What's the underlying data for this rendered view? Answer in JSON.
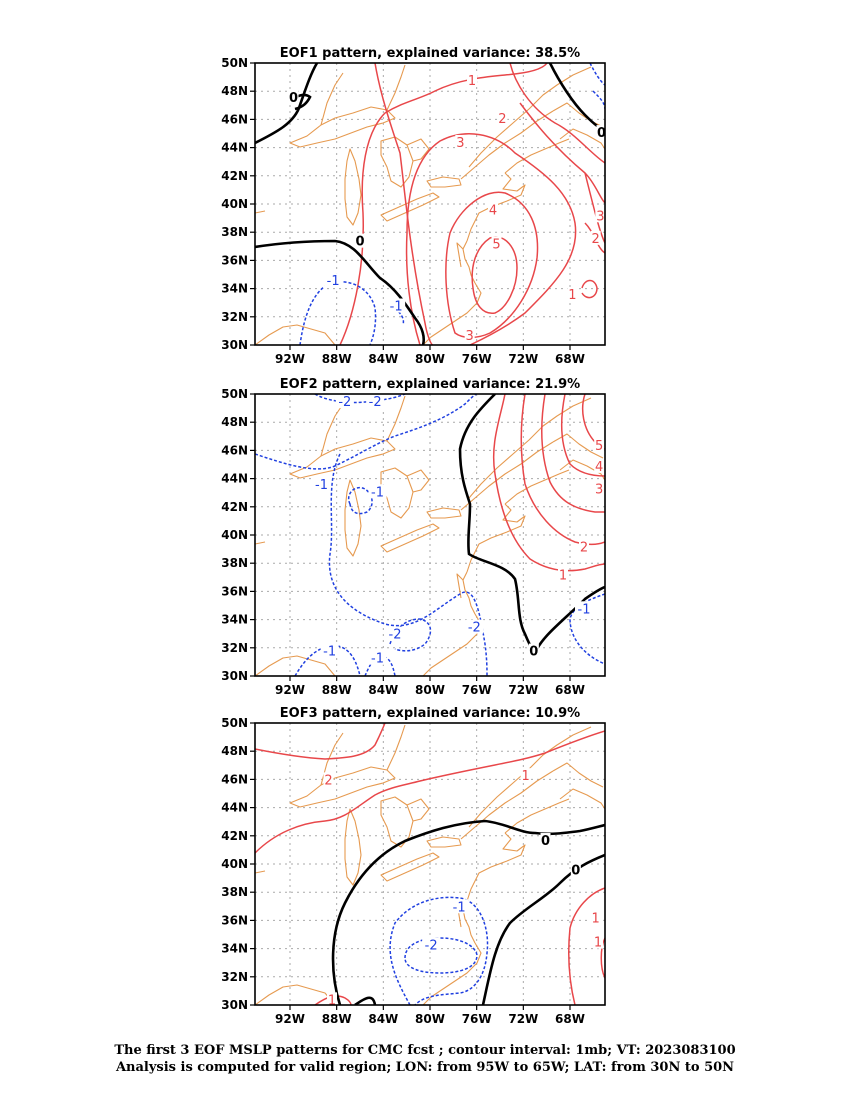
{
  "colors": {
    "positive": "#e8474a",
    "negative": "#2040e0",
    "zero": "#000000",
    "coast": "#e69a50",
    "grid": "#aaaaaa"
  },
  "lat_labels": [
    "30N",
    "32N",
    "34N",
    "36N",
    "38N",
    "40N",
    "42N",
    "44N",
    "46N",
    "48N",
    "50N"
  ],
  "lon_labels": [
    "92W",
    "88W",
    "84W",
    "80W",
    "76W",
    "72W",
    "68W"
  ],
  "panels": [
    {
      "title": "EOF1 pattern, explained variance: 38.5%",
      "labels": [
        {
          "t": "1",
          "c": "positive",
          "lon": -76.4,
          "lat": 48.8
        },
        {
          "t": "2",
          "c": "positive",
          "lon": -73.8,
          "lat": 46.1
        },
        {
          "t": "3",
          "c": "positive",
          "lon": -77.4,
          "lat": 44.4
        },
        {
          "t": "4",
          "c": "positive",
          "lon": -74.6,
          "lat": 39.6
        },
        {
          "t": "5",
          "c": "positive",
          "lon": -74.3,
          "lat": 37.2
        },
        {
          "t": "3",
          "c": "positive",
          "lon": -65.4,
          "lat": 39.2
        },
        {
          "t": "2",
          "c": "positive",
          "lon": -65.8,
          "lat": 37.6
        },
        {
          "t": "1",
          "c": "positive",
          "lon": -67.8,
          "lat": 33.6
        },
        {
          "t": "3",
          "c": "positive",
          "lon": -76.6,
          "lat": 30.7
        },
        {
          "t": "0",
          "c": "zero",
          "lon": -91.7,
          "lat": 47.6
        },
        {
          "t": "0",
          "c": "zero",
          "lon": -86.0,
          "lat": 37.4
        },
        {
          "t": "0",
          "c": "zero",
          "lon": -65.3,
          "lat": 45.1
        },
        {
          "t": "-1",
          "c": "negative",
          "lon": -88.3,
          "lat": 34.6
        },
        {
          "t": "-1",
          "c": "negative",
          "lon": -82.9,
          "lat": 32.8
        }
      ]
    },
    {
      "title": "EOF2 pattern, explained variance: 21.9%",
      "labels": [
        {
          "t": "-2",
          "c": "negative",
          "lon": -87.3,
          "lat": 49.5
        },
        {
          "t": "-2",
          "c": "negative",
          "lon": -84.7,
          "lat": 49.5
        },
        {
          "t": "-1",
          "c": "negative",
          "lon": -89.3,
          "lat": 43.6
        },
        {
          "t": "-1",
          "c": "negative",
          "lon": -84.5,
          "lat": 43.1
        },
        {
          "t": "-2",
          "c": "negative",
          "lon": -83.0,
          "lat": 33.0
        },
        {
          "t": "-2",
          "c": "negative",
          "lon": -76.2,
          "lat": 33.5
        },
        {
          "t": "-1",
          "c": "negative",
          "lon": -88.6,
          "lat": 31.8
        },
        {
          "t": "-1",
          "c": "negative",
          "lon": -84.5,
          "lat": 31.3
        },
        {
          "t": "-1",
          "c": "negative",
          "lon": -66.8,
          "lat": 34.8
        },
        {
          "t": "0",
          "c": "zero",
          "lon": -71.1,
          "lat": 31.8
        },
        {
          "t": "5",
          "c": "positive",
          "lon": -65.5,
          "lat": 46.4
        },
        {
          "t": "4",
          "c": "positive",
          "lon": -65.5,
          "lat": 44.9
        },
        {
          "t": "3",
          "c": "positive",
          "lon": -65.5,
          "lat": 43.3
        },
        {
          "t": "2",
          "c": "positive",
          "lon": -66.8,
          "lat": 39.2
        },
        {
          "t": "1",
          "c": "positive",
          "lon": -68.6,
          "lat": 37.2
        }
      ]
    },
    {
      "title": "EOF3 pattern, explained variance: 10.9%",
      "labels": [
        {
          "t": "2",
          "c": "positive",
          "lon": -88.7,
          "lat": 46.0
        },
        {
          "t": "1",
          "c": "positive",
          "lon": -71.8,
          "lat": 46.3
        },
        {
          "t": "1",
          "c": "positive",
          "lon": -65.8,
          "lat": 36.2
        },
        {
          "t": "1",
          "c": "positive",
          "lon": -65.6,
          "lat": 34.5
        },
        {
          "t": "1",
          "c": "positive",
          "lon": -88.4,
          "lat": 30.4
        },
        {
          "t": "0",
          "c": "zero",
          "lon": -70.1,
          "lat": 41.7
        },
        {
          "t": "0",
          "c": "zero",
          "lon": -67.5,
          "lat": 39.6
        },
        {
          "t": "-1",
          "c": "negative",
          "lon": -77.5,
          "lat": 37.0
        },
        {
          "t": "-2",
          "c": "negative",
          "lon": -79.9,
          "lat": 34.3
        }
      ]
    }
  ],
  "caption": {
    "line1": "The first 3 EOF MSLP patterns for CMC fcst ; contour interval: 1mb; VT: 2023083100",
    "line2": "Analysis is computed for valid region; LON: from 95W to 65W; LAT: from 30N to 50N"
  }
}
